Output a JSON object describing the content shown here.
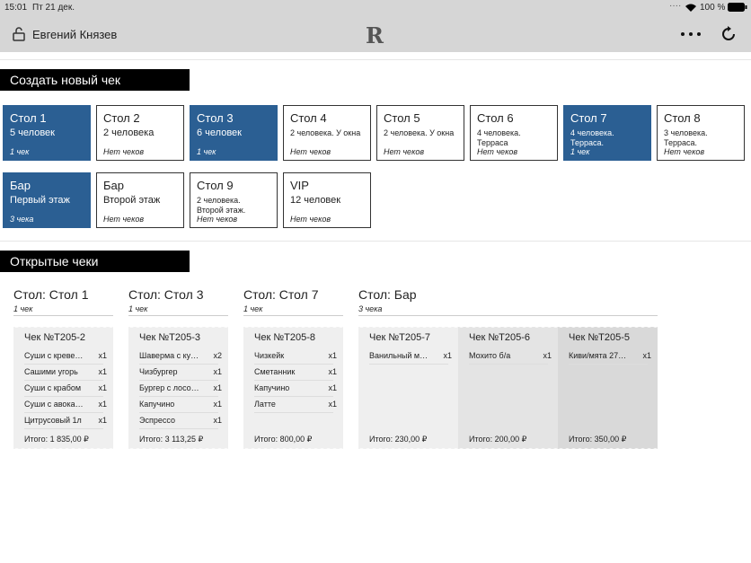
{
  "status_bar": {
    "time": "15:01",
    "date": "Пт 21 дек.",
    "battery": "100 %"
  },
  "header": {
    "user": "Евгений Князев",
    "logo": "R"
  },
  "new_check": {
    "title": "Создать новый чек",
    "tables": [
      {
        "name": "Стол 1",
        "desc": [
          "5 человек"
        ],
        "checks": "1 чек",
        "active": true
      },
      {
        "name": "Стол 2",
        "desc": [
          "2 человека"
        ],
        "checks": "Нет чеков",
        "active": false
      },
      {
        "name": "Стол 3",
        "desc": [
          "6 человек"
        ],
        "checks": "1 чек",
        "active": true
      },
      {
        "name": "Стол 4",
        "desc": [
          "2 человека. У окна"
        ],
        "checks": "Нет чеков",
        "active": false
      },
      {
        "name": "Стол 5",
        "desc": [
          "2 человека. У окна"
        ],
        "checks": "Нет чеков",
        "active": false
      },
      {
        "name": "Стол 6",
        "desc": [
          "4 человека.",
          "Терраса"
        ],
        "checks": "Нет чеков",
        "active": false
      },
      {
        "name": "Стол 7",
        "desc": [
          "4 человека.",
          "Терраса."
        ],
        "checks": "1 чек",
        "active": true
      },
      {
        "name": "Стол 8",
        "desc": [
          "3 человека.",
          "Терраса."
        ],
        "checks": "Нет чеков",
        "active": false
      },
      {
        "name": "Бар",
        "desc": [
          "Первый этаж"
        ],
        "checks": "3 чека",
        "active": true
      },
      {
        "name": "Бар",
        "desc": [
          "Второй этаж"
        ],
        "checks": "Нет чеков",
        "active": false
      },
      {
        "name": "Стол 9",
        "desc": [
          "2 человека.",
          "Второй этаж."
        ],
        "checks": "Нет чеков",
        "active": false
      },
      {
        "name": "VIP",
        "desc": [
          "12 человек"
        ],
        "checks": "Нет чеков",
        "active": false
      }
    ]
  },
  "open_checks": {
    "title": "Открытые чеки",
    "groups": [
      {
        "title": "Стол: Стол 1",
        "count": "1 чек",
        "checks": [
          {
            "number": "Чек №T205-2",
            "items": [
              [
                "Суши с креве…",
                "x1"
              ],
              [
                "Сашими угорь",
                "x1"
              ],
              [
                "Суши с крабом",
                "x1"
              ],
              [
                "Суши с авока…",
                "x1"
              ],
              [
                "Цитрусовый 1л",
                "x1"
              ]
            ],
            "total": "Итого: 1 835,00 ₽"
          }
        ]
      },
      {
        "title": "Стол: Стол 3",
        "count": "1 чек",
        "checks": [
          {
            "number": "Чек №T205-3",
            "items": [
              [
                "Шаверма с ку…",
                "x2"
              ],
              [
                "Чизбургер",
                "x1"
              ],
              [
                "Бургер с лосо…",
                "x1"
              ],
              [
                "Капучино",
                "x1"
              ],
              [
                "Эспрессо",
                "x1"
              ]
            ],
            "total": "Итого: 3 113,25 ₽"
          }
        ]
      },
      {
        "title": "Стол: Стол 7",
        "count": "1 чек",
        "checks": [
          {
            "number": "Чек №T205-8",
            "items": [
              [
                "Чизкейк",
                "x1"
              ],
              [
                "Сметанник",
                "x1"
              ],
              [
                "Капучино",
                "x1"
              ],
              [
                "Латте",
                "x1"
              ]
            ],
            "total": "Итого: 800,00 ₽"
          }
        ]
      },
      {
        "title": "Стол: Бар",
        "count": "3 чека",
        "checks": [
          {
            "number": "Чек №T205-7",
            "items": [
              [
                "Ванильный м…",
                "x1"
              ]
            ],
            "total": "Итого: 230,00 ₽"
          },
          {
            "number": "Чек №T205-6",
            "items": [
              [
                "Мохито б/а",
                "x1"
              ]
            ],
            "total": "Итого: 200,00 ₽"
          },
          {
            "number": "Чек №T205-5",
            "items": [
              [
                "Киви/мята 27…",
                "x1"
              ]
            ],
            "total": "Итого: 350,00 ₽"
          }
        ]
      }
    ]
  }
}
